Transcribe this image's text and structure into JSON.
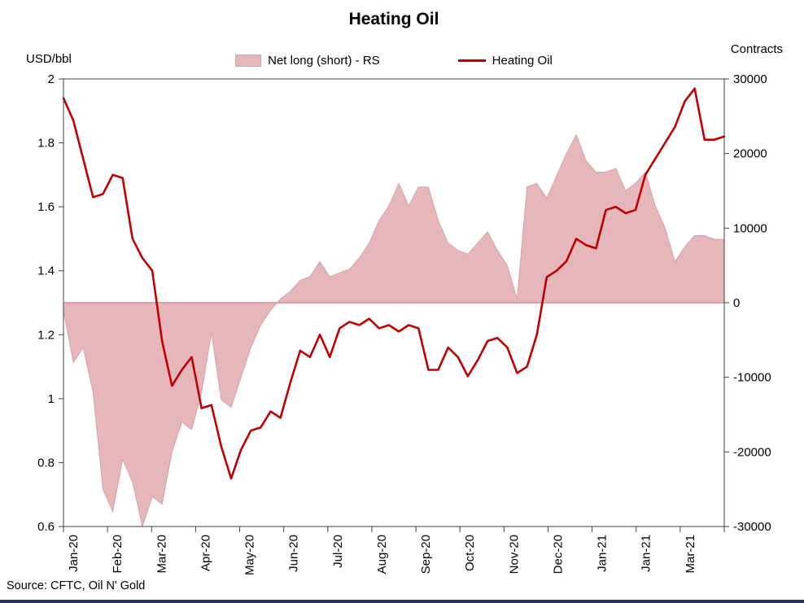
{
  "title": "Heating Oil",
  "left_axis_title": "USD/bbl",
  "right_axis_title": "Contracts",
  "source": "Source: CFTC, Oil N' Gold",
  "legend": {
    "area_label": "Net long (short) - RS",
    "line_label": "Heating Oil"
  },
  "colors": {
    "line": "#C00000",
    "area_fill": "#E5B6BA",
    "area_edge": "#D9A0A6",
    "axis": "#404040",
    "bottom_bar": "#1F3864"
  },
  "chart_data": {
    "type": "combo",
    "title": "Heating Oil",
    "x_tick_labels": [
      "Jan-20",
      "Feb-20",
      "Mar-20",
      "Apr-20",
      "May-20",
      "Jun-20",
      "Jul-20",
      "Aug-20",
      "Sep-20",
      "Oct-20",
      "Nov-20",
      "Dec-20",
      "Jan-21",
      "Jan-21",
      "Mar-21"
    ],
    "left_axis": {
      "label": "USD/bbl",
      "min": 0.6,
      "max": 2.0,
      "tick_labels": [
        "2",
        "1.8",
        "1.6",
        "1.4",
        "1.2",
        "1",
        "0.8",
        "0.6"
      ],
      "tick_values": [
        2,
        1.8,
        1.6,
        1.4,
        1.2,
        1,
        0.8,
        0.6
      ]
    },
    "right_axis": {
      "label": "Contracts",
      "min": -30000,
      "max": 30000,
      "tick_labels": [
        "30000",
        "20000",
        "10000",
        "0",
        "-10000",
        "-20000",
        "-30000"
      ],
      "tick_values": [
        30000,
        20000,
        10000,
        0,
        -10000,
        -20000,
        -30000
      ]
    },
    "series": [
      {
        "name": "Net long (short) - RS",
        "type": "area",
        "axis": "right",
        "values": [
          -1000,
          -8000,
          -6000,
          -12000,
          -25000,
          -28000,
          -21000,
          -24000,
          -30000,
          -26000,
          -27000,
          -20000,
          -16000,
          -17000,
          -12000,
          -4000,
          -13000,
          -14000,
          -10000,
          -6000,
          -3000,
          -1000,
          500,
          1500,
          3000,
          3500,
          5500,
          3500,
          4000,
          4500,
          6000,
          8000,
          11000,
          13000,
          16000,
          13000,
          15500,
          15500,
          11000,
          8000,
          7000,
          6500,
          8000,
          9500,
          7000,
          5000,
          500,
          15500,
          16000,
          14000,
          17000,
          20000,
          22500,
          19000,
          17500,
          17500,
          18000,
          15000,
          16000,
          17500,
          13000,
          10000,
          5500,
          7500,
          9000,
          9000,
          8500,
          8500
        ]
      },
      {
        "name": "Heating Oil",
        "type": "line",
        "axis": "left",
        "values": [
          1.94,
          1.87,
          1.75,
          1.63,
          1.64,
          1.7,
          1.69,
          1.5,
          1.44,
          1.4,
          1.18,
          1.04,
          1.09,
          1.13,
          0.97,
          0.98,
          0.85,
          0.75,
          0.84,
          0.9,
          0.91,
          0.96,
          0.94,
          1.05,
          1.15,
          1.13,
          1.2,
          1.13,
          1.22,
          1.24,
          1.23,
          1.25,
          1.22,
          1.23,
          1.21,
          1.23,
          1.22,
          1.09,
          1.09,
          1.16,
          1.13,
          1.07,
          1.12,
          1.18,
          1.19,
          1.16,
          1.08,
          1.1,
          1.2,
          1.38,
          1.4,
          1.43,
          1.5,
          1.48,
          1.47,
          1.59,
          1.6,
          1.58,
          1.59,
          1.7,
          1.75,
          1.8,
          1.85,
          1.93,
          1.97,
          1.81,
          1.81,
          1.82
        ]
      }
    ],
    "legend_position": "top",
    "grid": "off"
  }
}
